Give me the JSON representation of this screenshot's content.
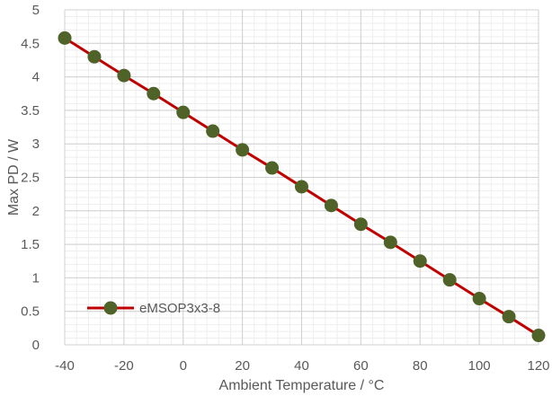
{
  "chart_data": {
    "type": "line",
    "title": "",
    "xlabel": "Ambient Temperature / °C",
    "ylabel": "Max PD / W",
    "xlim": [
      -40,
      120
    ],
    "ylim": [
      0,
      5
    ],
    "x_ticks": [
      -40,
      -20,
      0,
      20,
      40,
      60,
      80,
      100,
      120
    ],
    "y_ticks": [
      0,
      0.5,
      1,
      1.5,
      2,
      2.5,
      3,
      3.5,
      4,
      4.5,
      5
    ],
    "grid": true,
    "legend_position": "bottom-left",
    "series": [
      {
        "name": "eMSOP3x3-8",
        "color_line": "#c00000",
        "color_marker": "#4f6228",
        "x": [
          -40,
          -30,
          -20,
          -10,
          0,
          10,
          20,
          30,
          40,
          50,
          60,
          70,
          80,
          90,
          100,
          110,
          120
        ],
        "y": [
          4.58,
          4.3,
          4.02,
          3.75,
          3.47,
          3.19,
          2.91,
          2.64,
          2.36,
          2.08,
          1.8,
          1.53,
          1.25,
          0.97,
          0.69,
          0.42,
          0.14
        ]
      }
    ]
  }
}
